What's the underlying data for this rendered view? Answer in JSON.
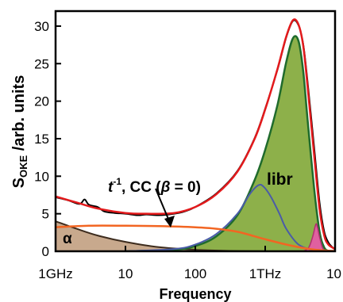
{
  "chart_data": {
    "type": "area",
    "xscale": "log",
    "xlim_hz": [
      1000000000.0,
      10000000000000.0
    ],
    "ylim": [
      0,
      32
    ],
    "yticks": [
      0,
      5,
      10,
      15,
      20,
      25,
      30
    ],
    "xticks": [
      {
        "value": 1000000000.0,
        "label": "1GHz"
      },
      {
        "value": 10000000000.0,
        "label": "10"
      },
      {
        "value": 100000000000.0,
        "label": "100"
      },
      {
        "value": 1000000000000.0,
        "label": "1THz"
      },
      {
        "value": 10000000000000.0,
        "label": "10"
      }
    ],
    "xlabel": "Frequency",
    "ylabel": {
      "main": "S",
      "sub": "OKE",
      "rest": " /arb. units"
    },
    "grid": false,
    "annotations": {
      "alpha": "α",
      "libr": "libr",
      "cc_t": "t",
      "cc_sup": "-1",
      "cc_rest": ", CC (",
      "cc_beta": "β",
      "cc_end": " = 0)"
    },
    "colors": {
      "experimental": "#000000",
      "fit_total": "#e31a1c",
      "cc": "#f26522",
      "alpha_fill": "#c8a98d",
      "alpha_line": "#3d2c1e",
      "libr_fill": "#8db04a",
      "libr_line": "#1f6b2c",
      "blue_band": "#4a5ba8",
      "pink_fill": "#e060a0",
      "pink_line": "#b0306f"
    },
    "series": [
      {
        "name": "total fit",
        "kind": "line",
        "points": [
          [
            1000000000.0,
            7.3
          ],
          [
            2000000000.0,
            6.5
          ],
          [
            4000000000.0,
            5.7
          ],
          [
            10000000000.0,
            5.1
          ],
          [
            20000000000.0,
            5.0
          ],
          [
            50000000000.0,
            5.1
          ],
          [
            100000000000.0,
            5.9
          ],
          [
            200000000000.0,
            7.6
          ],
          [
            400000000000.0,
            10.6
          ],
          [
            700000000000.0,
            14.9
          ],
          [
            1000000000000.0,
            18.9
          ],
          [
            1500000000000.0,
            24.3
          ],
          [
            2000000000000.0,
            28.6
          ],
          [
            2500000000000.0,
            30.8
          ],
          [
            3000000000000.0,
            30.2
          ],
          [
            3500000000000.0,
            27.4
          ],
          [
            4000000000000.0,
            22.4
          ],
          [
            5000000000000.0,
            13.0
          ],
          [
            6000000000000.0,
            5.6
          ],
          [
            7000000000000.0,
            2.1
          ],
          [
            8000000000000.0,
            0.9
          ],
          [
            10000000000000.0,
            0.3
          ]
        ]
      },
      {
        "name": "experimental",
        "kind": "line",
        "points": [
          [
            1000000000.0,
            7.2
          ],
          [
            1500000000.0,
            6.8
          ],
          [
            2200000000.0,
            6.3
          ],
          [
            2600000000.0,
            6.9
          ],
          [
            3000000000.0,
            6.2
          ],
          [
            4000000000.0,
            5.9
          ],
          [
            5000000000.0,
            5.3
          ],
          [
            7000000000.0,
            5.1
          ],
          [
            10000000000.0,
            5.0
          ],
          [
            15000000000.0,
            4.8
          ],
          [
            20000000000.0,
            4.9
          ],
          [
            30000000000.0,
            4.8
          ],
          [
            50000000000.0,
            5.0
          ],
          [
            70000000000.0,
            5.3
          ],
          [
            100000000000.0,
            5.9
          ],
          [
            200000000000.0,
            7.7
          ],
          [
            400000000000.0,
            10.7
          ],
          [
            700000000000.0,
            15.0
          ],
          [
            1000000000000.0,
            19.0
          ],
          [
            1500000000000.0,
            24.2
          ],
          [
            2000000000000.0,
            28.5
          ],
          [
            2500000000000.0,
            30.7
          ],
          [
            3000000000000.0,
            30.1
          ],
          [
            3500000000000.0,
            27.6
          ],
          [
            4000000000000.0,
            23.0
          ],
          [
            5000000000000.0,
            14.0
          ],
          [
            6000000000000.0,
            6.5
          ],
          [
            7000000000000.0,
            2.6
          ],
          [
            8000000000000.0,
            1.2
          ],
          [
            9000000000000.0,
            0.6
          ],
          [
            10000000000000.0,
            0.3
          ]
        ]
      },
      {
        "name": "CC",
        "kind": "line",
        "points": [
          [
            1000000000.0,
            3.2
          ],
          [
            3000000000.0,
            3.4
          ],
          [
            10000000000.0,
            3.4
          ],
          [
            30000000000.0,
            3.35
          ],
          [
            100000000000.0,
            3.2
          ],
          [
            200000000000.0,
            3.0
          ],
          [
            400000000000.0,
            2.6
          ],
          [
            700000000000.0,
            2.0
          ],
          [
            1000000000000.0,
            1.6
          ],
          [
            2000000000000.0,
            0.9
          ],
          [
            4000000000000.0,
            0.35
          ],
          [
            7000000000000.0,
            0.1
          ],
          [
            10000000000000.0,
            0.05
          ]
        ]
      },
      {
        "name": "alpha",
        "kind": "area",
        "points": [
          [
            1000000000.0,
            4.0
          ],
          [
            2000000000.0,
            3.0
          ],
          [
            4000000000.0,
            2.1
          ],
          [
            10000000000.0,
            1.25
          ],
          [
            30000000000.0,
            0.55
          ],
          [
            100000000000.0,
            0.2
          ],
          [
            300000000000.0,
            0.05
          ],
          [
            1000000000000.0,
            0.0
          ]
        ]
      },
      {
        "name": "libr",
        "kind": "area",
        "points": [
          [
            10000000000.0,
            0.0
          ],
          [
            50000000000.0,
            0.2
          ],
          [
            100000000000.0,
            0.7
          ],
          [
            200000000000.0,
            2.0
          ],
          [
            400000000000.0,
            4.8
          ],
          [
            700000000000.0,
            9.4
          ],
          [
            1000000000000.0,
            13.5
          ],
          [
            1500000000000.0,
            19.5
          ],
          [
            2000000000000.0,
            25.2
          ],
          [
            2500000000000.0,
            28.4
          ],
          [
            3000000000000.0,
            28.0
          ],
          [
            3500000000000.0,
            24.0
          ],
          [
            4000000000000.0,
            18.0
          ],
          [
            5000000000000.0,
            8.5
          ],
          [
            6000000000000.0,
            2.6
          ],
          [
            7000000000000.0,
            0.5
          ],
          [
            8000000000000.0,
            0.05
          ]
        ]
      },
      {
        "name": "band",
        "kind": "line",
        "points": [
          [
            10000000000.0,
            0.0
          ],
          [
            50000000000.0,
            0.3
          ],
          [
            100000000000.0,
            0.9
          ],
          [
            200000000000.0,
            2.3
          ],
          [
            400000000000.0,
            5.0
          ],
          [
            600000000000.0,
            7.6
          ],
          [
            800000000000.0,
            8.8
          ],
          [
            950000000000.0,
            8.6
          ],
          [
            1200000000000.0,
            7.3
          ],
          [
            1600000000000.0,
            5.0
          ],
          [
            2000000000000.0,
            3.0
          ],
          [
            3000000000000.0,
            0.9
          ],
          [
            5000000000000.0,
            0.1
          ]
        ]
      },
      {
        "name": "high",
        "kind": "area",
        "points": [
          [
            3500000000000.0,
            0.0
          ],
          [
            4200000000000.0,
            0.5
          ],
          [
            4800000000000.0,
            2.0
          ],
          [
            5300000000000.0,
            3.6
          ],
          [
            5600000000000.0,
            3.2
          ],
          [
            6000000000000.0,
            1.9
          ],
          [
            6600000000000.0,
            0.5
          ],
          [
            7200000000000.0,
            0.0
          ]
        ]
      }
    ]
  }
}
